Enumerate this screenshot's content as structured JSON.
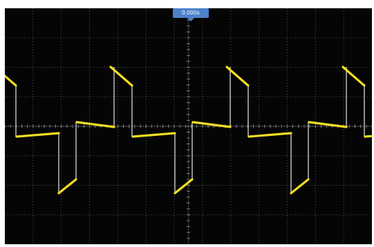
{
  "scope": {
    "trigger_time": "0.000s",
    "colors": {
      "background": "#050505",
      "grid": "#9a9a9a",
      "trace": "#f2de24",
      "trace_edge": "#cfcfcf",
      "trigger_flag": "#4c82c9"
    },
    "grid": {
      "divisions_x": 13,
      "divisions_y": 8,
      "subdivisions": 5
    },
    "waveform": {
      "shape": "ac-coupled square wave with sloped tops/bottoms",
      "cycles_visible": 3
    }
  }
}
